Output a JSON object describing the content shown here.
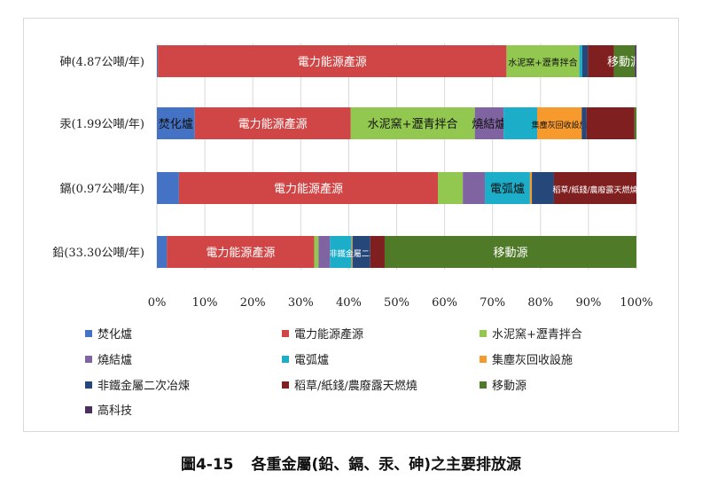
{
  "chart_data": {
    "type": "bar",
    "orientation": "horizontal",
    "stacked": "100%",
    "categories": [
      "砷(4.87公噸/年)",
      "汞(1.99公噸/年)",
      "鎘(0.97公噸/年)",
      "鉛(33.30公噸/年)"
    ],
    "series": [
      {
        "name": "焚化爐",
        "color": "#4472c4",
        "values": [
          0.2,
          7.9,
          4.6,
          2.1
        ]
      },
      {
        "name": "電力能源產源",
        "color": "#d04545",
        "values": [
          72.7,
          32.5,
          54.0,
          30.7
        ]
      },
      {
        "name": "水泥窯+瀝青拌合",
        "color": "#92c84f",
        "values": [
          15.2,
          25.9,
          5.2,
          0.9
        ]
      },
      {
        "name": "燒結爐",
        "color": "#8064a2",
        "values": [
          0.0,
          6.0,
          4.6,
          2.4
        ]
      },
      {
        "name": "電弧爐",
        "color": "#1cadc9",
        "values": [
          0.6,
          7.0,
          9.4,
          4.5
        ]
      },
      {
        "name": "集塵灰回收設施",
        "color": "#f79a2e",
        "values": [
          0.0,
          9.3,
          0.4,
          0.2
        ]
      },
      {
        "name": "非鐵金屬二次冶煉",
        "color": "#25477a",
        "values": [
          1.2,
          1.0,
          4.6,
          3.7
        ]
      },
      {
        "name": "稻草/紙錢/農廢露天燃燒",
        "color": "#7f1f1f",
        "values": [
          5.4,
          10.0,
          17.2,
          3.0
        ]
      },
      {
        "name": "移動源",
        "color": "#4f7a28",
        "values": [
          4.4,
          0.4,
          0.0,
          52.5
        ]
      },
      {
        "name": "高科技",
        "color": "#4b2f5e",
        "values": [
          0.3,
          0.0,
          0.0,
          0.0
        ]
      }
    ],
    "data_labels": [
      [
        "電力能源產源",
        "水泥窯+瀝青拌合",
        "移動源"
      ],
      [
        "焚化爐",
        "電力能源產源",
        "水泥窯+瀝青拌合",
        "燒結爐",
        "集塵灰回收設施"
      ],
      [
        "電力能源產源",
        "電弧爐",
        "稻草/紙錢/農廢露天燃燒"
      ],
      [
        "電力能源產源",
        "非鐵金屬二次冶煉",
        "移動源"
      ]
    ],
    "xlim": [
      0,
      100
    ],
    "xticks": [
      "0%",
      "10%",
      "20%",
      "30%",
      "40%",
      "50%",
      "60%",
      "70%",
      "80%",
      "90%",
      "100%"
    ],
    "grid": true,
    "legend": "bottom",
    "title": ""
  },
  "caption": {
    "figure_no": "圖4-15",
    "text": "各重金屬(鉛、鎘、汞、砷)之主要排放源"
  }
}
